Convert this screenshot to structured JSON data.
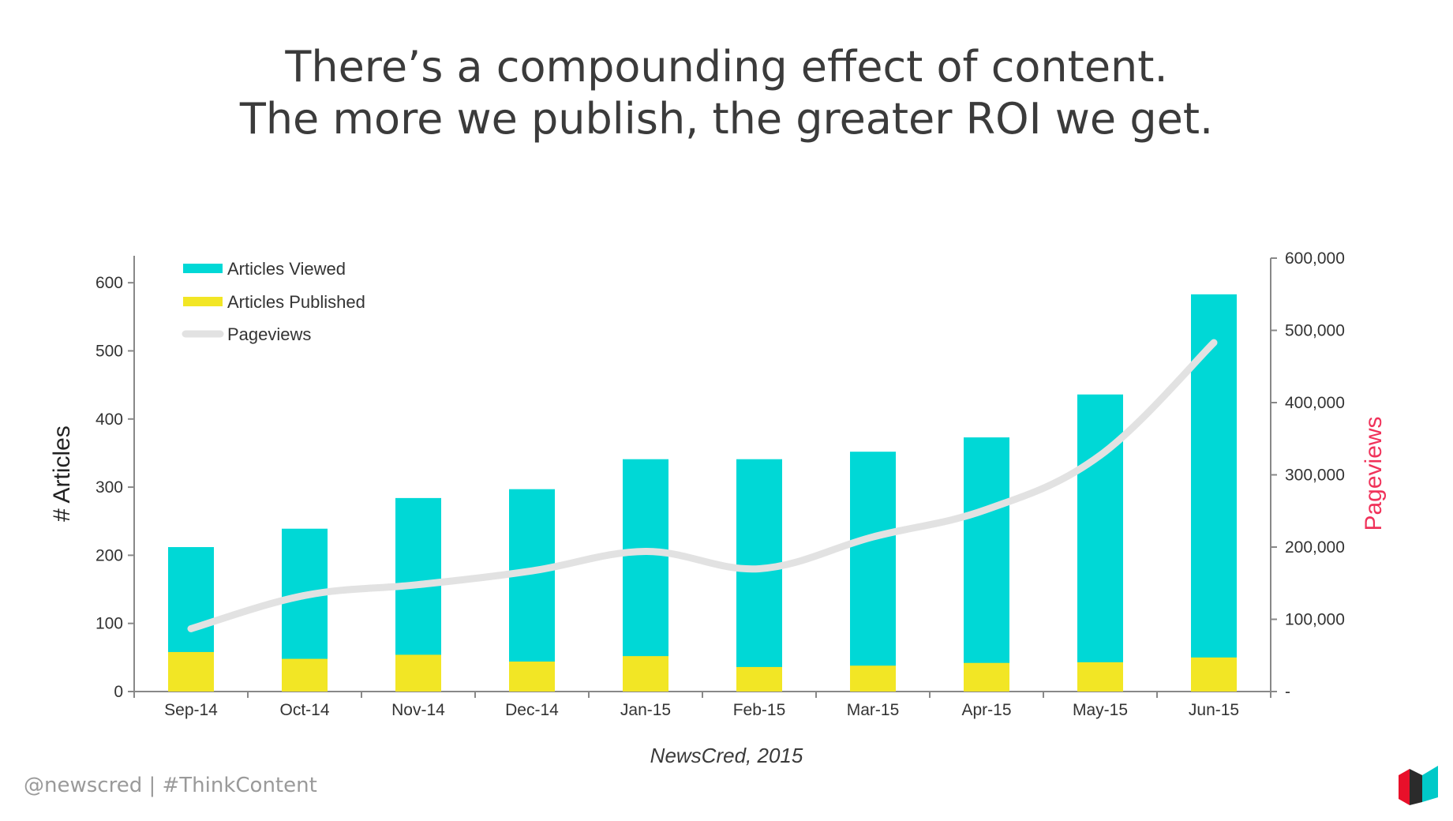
{
  "slide": {
    "title_line1": "There’s a compounding effect of content.",
    "title_line2": "The more we publish, the greater ROI we get.",
    "source": "NewsCred, 2015",
    "footer": "@newscred  |  #ThinkContent"
  },
  "colors": {
    "viewed": "#00D8D6",
    "published": "#F2E625",
    "pageviews": "#E2E2E2",
    "right_axis_label": "#F0325A",
    "logo_red": "#E8102A",
    "logo_dark": "#2B2B2B",
    "logo_teal": "#00C9C8"
  },
  "chart_data": {
    "type": "bar",
    "categories": [
      "Sep-14",
      "Oct-14",
      "Nov-14",
      "Dec-14",
      "Jan-15",
      "Feb-15",
      "Mar-15",
      "Apr-15",
      "May-15",
      "Jun-15"
    ],
    "series": [
      {
        "name": "Articles Viewed",
        "type": "bar",
        "axis": "left",
        "values": [
          212,
          239,
          284,
          297,
          341,
          341,
          352,
          373,
          436,
          583
        ]
      },
      {
        "name": "Articles Published",
        "type": "bar",
        "axis": "left",
        "values": [
          58,
          48,
          54,
          44,
          52,
          36,
          38,
          42,
          43,
          50
        ]
      },
      {
        "name": "Pageviews",
        "type": "line",
        "axis": "right",
        "values": [
          87000,
          133000,
          148000,
          167000,
          194000,
          170000,
          214000,
          252000,
          327000,
          483000
        ]
      }
    ],
    "ylabel": "# Articles",
    "y2label": "Pageviews",
    "ylim": [
      0,
      650
    ],
    "y2lim": [
      0,
      600000
    ],
    "yticks": [
      "0",
      "100",
      "200",
      "300",
      "400",
      "500",
      "600"
    ],
    "y2ticks": [
      "-",
      "100,000",
      "200,000",
      "300,000",
      "400,000",
      "500,000",
      "600,000"
    ],
    "legend": [
      "Articles Viewed",
      "Articles Published",
      "Pageviews"
    ],
    "legend_position": "top-left",
    "grid": false
  }
}
